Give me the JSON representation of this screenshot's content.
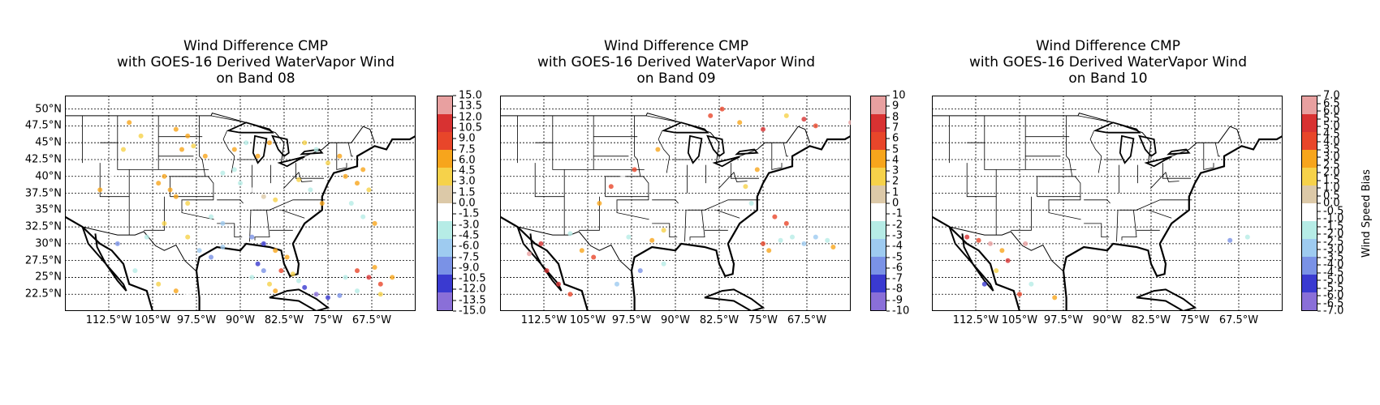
{
  "panels": [
    {
      "title_line1": "Wind Difference CMP",
      "title_line2": "with GOES-16 Derived WaterVapor Wind",
      "title_line3": "on Band 08",
      "colorbar": {
        "vmin": -15.0,
        "vmax": 15.0,
        "ticks": [
          "15.0",
          "13.5",
          "12.0",
          "10.5",
          "9.0",
          "7.5",
          "6.0",
          "4.5",
          "3.0",
          "1.5",
          "0.0",
          "-1.5",
          "-3.0",
          "-4.5",
          "-6.0",
          "-7.5",
          "-9.0",
          "-10.5",
          "-12.0",
          "-13.5",
          "-15.0"
        ]
      },
      "points": [
        [
          -101,
          47,
          6
        ],
        [
          -99,
          46,
          5
        ],
        [
          -98,
          44.5,
          4
        ],
        [
          -100,
          44,
          7
        ],
        [
          -96,
          43,
          5
        ],
        [
          -95,
          41,
          -2
        ],
        [
          -93,
          40.5,
          -3
        ],
        [
          -91,
          41,
          -4
        ],
        [
          -103,
          40,
          6
        ],
        [
          -104,
          39,
          7
        ],
        [
          -102,
          38,
          5
        ],
        [
          -101,
          37,
          6
        ],
        [
          -99,
          36,
          4
        ],
        [
          -97,
          35,
          -1
        ],
        [
          -95,
          34,
          -5
        ],
        [
          -93,
          33,
          -6
        ],
        [
          -90,
          39,
          -3
        ],
        [
          -88,
          38,
          -2
        ],
        [
          -86,
          37,
          2
        ],
        [
          -84,
          36.5,
          4
        ],
        [
          -82,
          38,
          -2
        ],
        [
          -80,
          39.5,
          3
        ],
        [
          -78,
          38,
          -4
        ],
        [
          -76,
          36,
          5
        ],
        [
          -88,
          31,
          -10
        ],
        [
          -86,
          30,
          -12
        ],
        [
          -84,
          29,
          5
        ],
        [
          -82,
          28,
          6
        ],
        [
          -83,
          26,
          8
        ],
        [
          -81,
          25.5,
          4
        ],
        [
          -80,
          24.5,
          -3
        ],
        [
          -79,
          23.5,
          -11
        ],
        [
          -77,
          22.5,
          -13
        ],
        [
          -75,
          22,
          -12
        ],
        [
          -73,
          22.3,
          -9
        ],
        [
          -86,
          26,
          -10
        ],
        [
          -87,
          27,
          -11
        ],
        [
          -88,
          25,
          -4
        ],
        [
          -85,
          24,
          3
        ],
        [
          -84,
          23,
          5
        ],
        [
          -72,
          40,
          5
        ],
        [
          -70,
          39,
          6
        ],
        [
          -68,
          38,
          4
        ],
        [
          -67,
          40,
          -2
        ],
        [
          -69,
          41,
          7
        ],
        [
          -71,
          36,
          -3
        ],
        [
          -69,
          34,
          -4
        ],
        [
          -67,
          33,
          5
        ],
        [
          -70,
          26,
          8
        ],
        [
          -68,
          25,
          10
        ],
        [
          -66,
          24,
          9
        ],
        [
          -72,
          25,
          -5
        ],
        [
          -67,
          26.5,
          7
        ],
        [
          -64,
          25,
          6
        ],
        [
          -66,
          22.5,
          4
        ],
        [
          -70,
          23,
          -3
        ],
        [
          -109,
          48,
          6
        ],
        [
          -107,
          46,
          4
        ],
        [
          -110,
          44,
          3
        ],
        [
          -112,
          40,
          -2
        ],
        [
          -114,
          38,
          5
        ],
        [
          -111,
          30,
          -8
        ],
        [
          -108,
          26,
          -4
        ],
        [
          -104,
          24,
          3
        ],
        [
          -101,
          23,
          5
        ],
        [
          -99,
          22.5,
          -2
        ],
        [
          -106,
          31,
          -5
        ],
        [
          -103,
          33,
          4
        ],
        [
          -91,
          44,
          7
        ],
        [
          -89,
          45,
          -3
        ],
        [
          -87,
          43,
          5
        ],
        [
          -85,
          45,
          6
        ],
        [
          -79,
          45,
          4
        ],
        [
          -77,
          44,
          -3
        ],
        [
          -75,
          42,
          3
        ],
        [
          -73,
          43,
          6
        ],
        [
          -97,
          29,
          -6
        ],
        [
          -95,
          28,
          -8
        ],
        [
          -93,
          29.5,
          -7
        ],
        [
          -99,
          31,
          3
        ]
      ]
    },
    {
      "title_line1": "Wind Difference CMP",
      "title_line2": "with GOES-16 Derived WaterVapor Wind",
      "title_line3": "on Band 09",
      "colorbar": {
        "vmin": -10,
        "vmax": 10,
        "ticks": [
          "10",
          "9",
          "8",
          "7",
          "6",
          "5",
          "4",
          "3",
          "2",
          "1",
          "0",
          "-1",
          "-2",
          "-3",
          "-4",
          "-5",
          "-6",
          "-7",
          "-8",
          "-9",
          "-10"
        ]
      },
      "points": [
        [
          -84,
          49,
          5
        ],
        [
          -82,
          50,
          6
        ],
        [
          -79,
          48,
          4
        ],
        [
          -75,
          47,
          7
        ],
        [
          -71,
          49,
          3
        ],
        [
          -68,
          48.5,
          8
        ],
        [
          -66,
          47.5,
          5
        ],
        [
          -60,
          48,
          9
        ],
        [
          -76,
          41,
          4
        ],
        [
          -78,
          38.5,
          3
        ],
        [
          -77,
          36,
          -2
        ],
        [
          -73,
          34,
          5
        ],
        [
          -71,
          33,
          6
        ],
        [
          -70,
          31,
          -3
        ],
        [
          -72,
          30.5,
          -2
        ],
        [
          -68,
          30,
          -4
        ],
        [
          -75,
          30,
          5
        ],
        [
          -74,
          29,
          4
        ],
        [
          -66,
          31,
          -5
        ],
        [
          -64,
          30.5,
          -3
        ],
        [
          -63,
          29.5,
          4
        ],
        [
          -101,
          38.5,
          5
        ],
        [
          -99,
          40,
          -1
        ],
        [
          -103,
          36,
          4
        ],
        [
          -113,
          30,
          8
        ],
        [
          -115,
          28.5,
          9
        ],
        [
          -112,
          26,
          7
        ],
        [
          -110,
          24,
          8
        ],
        [
          -108,
          22.5,
          6
        ],
        [
          -100,
          24,
          -4
        ],
        [
          -96,
          26,
          -6
        ],
        [
          -92,
          27,
          -3
        ],
        [
          -94,
          30.5,
          4
        ],
        [
          -92,
          32,
          3
        ],
        [
          -98,
          31,
          -2
        ],
        [
          -104,
          28,
          5
        ],
        [
          -106,
          29,
          4
        ],
        [
          -108,
          31.5,
          -2
        ],
        [
          -97,
          41,
          5
        ],
        [
          -93,
          44,
          4
        ]
      ]
    },
    {
      "title_line1": "Wind Difference CMP",
      "title_line2": "with GOES-16 Derived WaterVapor Wind",
      "title_line3": "on Band 10",
      "colorbar": {
        "vmin": -7.0,
        "vmax": 7.0,
        "ticks": [
          "7.0",
          "6.5",
          "6.0",
          "5.5",
          "5.0",
          "4.5",
          "4.0",
          "3.5",
          "3.0",
          "2.5",
          "2.0",
          "1.5",
          "1.0",
          "0.5",
          "0.0",
          "-0.5",
          "-1.0",
          "-1.5",
          "-2.0",
          "-2.5",
          "-3.0",
          "-3.5",
          "-4.0",
          "-4.5",
          "-5.0",
          "-5.5",
          "-6.0",
          "-6.5",
          "-7.0"
        ]
      },
      "label": "Wind Speed Bias",
      "points": [
        [
          -114,
          31,
          5
        ],
        [
          -112,
          30.5,
          4
        ],
        [
          -110,
          30,
          6
        ],
        [
          -108,
          29,
          3
        ],
        [
          -107,
          27.5,
          5
        ],
        [
          -109,
          26,
          2
        ],
        [
          -111,
          24,
          -5
        ],
        [
          -105,
          22.5,
          4
        ],
        [
          -103,
          24,
          -2
        ],
        [
          -99,
          22,
          3
        ],
        [
          -69,
          30.5,
          -4
        ],
        [
          -66,
          31,
          -2
        ],
        [
          -104,
          30,
          6
        ]
      ]
    }
  ],
  "map": {
    "lon_min": -120,
    "lon_max": -60,
    "lat_min": 20,
    "lat_max": 52,
    "lat_ticks": [
      "50°N",
      "47.5°N",
      "45°N",
      "42.5°N",
      "40°N",
      "37.5°N",
      "35°N",
      "32.5°N",
      "30°N",
      "27.5°N",
      "25°N",
      "22.5°N"
    ],
    "lon_ticks": [
      "112.5°W",
      "105°W",
      "97.5°W",
      "90°W",
      "82.5°W",
      "75°W",
      "67.5°W"
    ]
  },
  "colors": {
    "colormap": [
      "#8a6fd8",
      "#3a3ad0",
      "#7a92e6",
      "#9ecbf0",
      "#b6ece6",
      "#ffffff",
      "#dcc9a8",
      "#f6d24a",
      "#f7a51c",
      "#e8462a",
      "#d83232",
      "#e8a0a0"
    ]
  }
}
